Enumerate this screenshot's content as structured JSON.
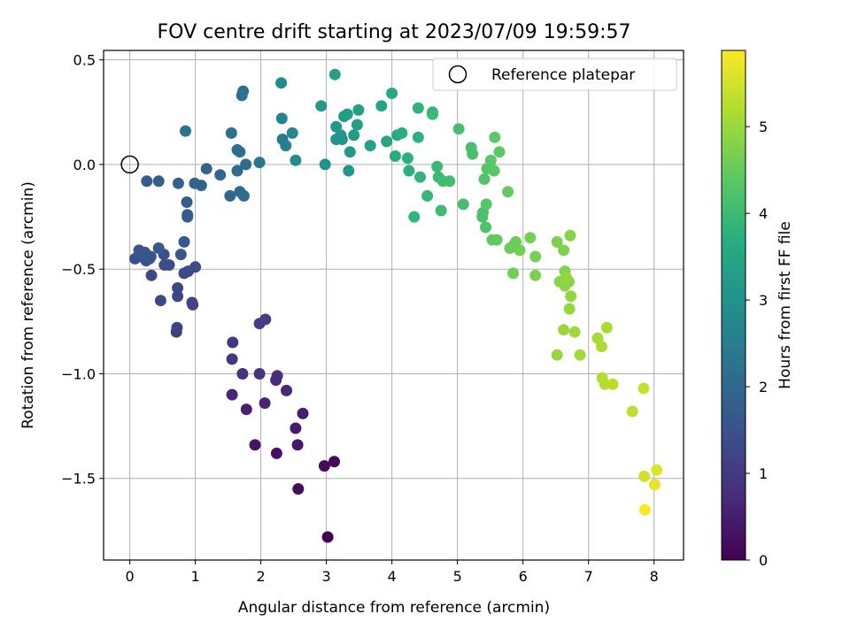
{
  "chart_data": {
    "type": "scatter",
    "title": "FOV centre drift starting at 2023/07/09 19:59:57",
    "xlabel": "Angular distance from reference (arcmin)",
    "ylabel": "Rotation from reference (arcmin)",
    "xlim": [
      -0.4,
      8.45
    ],
    "ylim": [
      -1.89,
      0.545
    ],
    "xticks": [
      0,
      1,
      2,
      3,
      4,
      5,
      6,
      7,
      8
    ],
    "xtick_labels": [
      "0",
      "1",
      "2",
      "3",
      "4",
      "5",
      "6",
      "7",
      "8"
    ],
    "yticks": [
      0.5,
      0.0,
      -0.5,
      -1.0,
      -1.5
    ],
    "ytick_labels": [
      "0.5",
      "0.0",
      "−0.5",
      "−1.0",
      "−1.5"
    ],
    "grid": true,
    "legend": {
      "location": "top-right",
      "entries": [
        "Reference platepar"
      ]
    },
    "reference_point": {
      "x": 0.0,
      "y": 0.0
    },
    "colorbar": {
      "label": "Hours from first FF file",
      "colormap": "viridis",
      "range": [
        0,
        5.88
      ],
      "ticks": [
        0,
        1,
        2,
        3,
        4,
        5
      ],
      "tick_labels": [
        "0",
        "1",
        "2",
        "3",
        "4",
        "5"
      ]
    },
    "series": [
      {
        "values": [
          [
            3.02,
            -1.78,
            0.0
          ],
          [
            3.12,
            -1.42,
            0.1
          ],
          [
            2.97,
            -1.44,
            0.15
          ],
          [
            2.57,
            -1.55,
            0.2
          ],
          [
            2.24,
            -1.38,
            0.3
          ],
          [
            1.91,
            -1.34,
            0.35
          ],
          [
            2.56,
            -1.34,
            0.4
          ],
          [
            2.53,
            -1.26,
            0.45
          ],
          [
            2.64,
            -1.19,
            0.5
          ],
          [
            1.78,
            -1.17,
            0.55
          ],
          [
            2.06,
            -1.14,
            0.6
          ],
          [
            1.56,
            -1.1,
            0.65
          ],
          [
            2.39,
            -1.08,
            0.7
          ],
          [
            2.23,
            -1.03,
            0.75
          ],
          [
            2.25,
            -1.01,
            0.8
          ],
          [
            1.72,
            -1.0,
            0.85
          ],
          [
            1.98,
            -1.0,
            0.9
          ],
          [
            1.56,
            -0.93,
            0.95
          ],
          [
            1.57,
            -0.85,
            1.0
          ],
          [
            1.98,
            -0.76,
            1.05
          ],
          [
            2.07,
            -0.74,
            1.1
          ],
          [
            0.71,
            -0.8,
            1.12
          ],
          [
            0.72,
            -0.78,
            1.15
          ],
          [
            0.96,
            -0.67,
            1.18
          ],
          [
            0.95,
            -0.66,
            1.2
          ],
          [
            0.73,
            -0.63,
            1.22
          ],
          [
            0.73,
            -0.59,
            1.25
          ],
          [
            0.47,
            -0.65,
            1.28
          ],
          [
            0.33,
            -0.53,
            1.3
          ],
          [
            0.83,
            -0.52,
            1.32
          ],
          [
            0.89,
            -0.51,
            1.35
          ],
          [
            1.0,
            -0.49,
            1.38
          ],
          [
            0.53,
            -0.48,
            1.4
          ],
          [
            0.6,
            -0.48,
            1.42
          ],
          [
            0.52,
            -0.43,
            1.45
          ],
          [
            0.08,
            -0.45,
            1.47
          ],
          [
            0.15,
            -0.44,
            1.48
          ],
          [
            0.25,
            -0.46,
            1.5
          ],
          [
            0.3,
            -0.45,
            1.52
          ],
          [
            0.32,
            -0.44,
            1.55
          ],
          [
            0.14,
            -0.41,
            1.57
          ],
          [
            0.23,
            -0.42,
            1.58
          ],
          [
            0.44,
            -0.4,
            1.6
          ],
          [
            0.78,
            -0.43,
            1.62
          ],
          [
            0.83,
            -0.37,
            1.65
          ],
          [
            0.88,
            -0.25,
            1.7
          ],
          [
            0.88,
            -0.24,
            1.72
          ],
          [
            0.87,
            -0.18,
            1.75
          ],
          [
            0.26,
            -0.08,
            1.78
          ],
          [
            0.44,
            -0.08,
            1.8
          ],
          [
            0.74,
            -0.09,
            1.82
          ],
          [
            0.99,
            -0.09,
            1.85
          ],
          [
            1.09,
            -0.1,
            1.87
          ],
          [
            1.17,
            -0.02,
            1.9
          ],
          [
            1.38,
            -0.05,
            1.95
          ],
          [
            1.53,
            -0.15,
            2.0
          ],
          [
            1.68,
            -0.13,
            2.05
          ],
          [
            1.74,
            -0.15,
            2.08
          ],
          [
            1.64,
            -0.03,
            2.1
          ],
          [
            1.77,
            0.0,
            2.12
          ],
          [
            1.64,
            0.07,
            2.15
          ],
          [
            1.68,
            0.06,
            2.18
          ],
          [
            1.55,
            0.15,
            2.2
          ],
          [
            1.71,
            0.33,
            2.22
          ],
          [
            1.73,
            0.35,
            2.24
          ],
          [
            0.85,
            0.16,
            2.26
          ],
          [
            1.98,
            0.01,
            2.3
          ],
          [
            2.33,
            0.12,
            2.45
          ],
          [
            2.38,
            0.09,
            2.55
          ],
          [
            2.32,
            0.22,
            2.65
          ],
          [
            2.48,
            0.15,
            2.7
          ],
          [
            2.53,
            0.02,
            2.8
          ],
          [
            2.31,
            0.39,
            2.85
          ],
          [
            2.98,
            0.0,
            3.0
          ],
          [
            3.15,
            0.12,
            3.05
          ],
          [
            3.24,
            0.12,
            3.08
          ],
          [
            3.22,
            0.14,
            3.1
          ],
          [
            3.34,
            -0.03,
            3.12
          ],
          [
            3.15,
            0.18,
            3.15
          ],
          [
            2.92,
            0.28,
            3.17
          ],
          [
            3.36,
            0.06,
            3.2
          ],
          [
            3.42,
            0.14,
            3.22
          ],
          [
            3.27,
            0.23,
            3.25
          ],
          [
            3.32,
            0.24,
            3.27
          ],
          [
            3.47,
            0.19,
            3.3
          ],
          [
            3.49,
            0.26,
            3.32
          ],
          [
            3.13,
            0.43,
            3.35
          ],
          [
            3.67,
            0.09,
            3.4
          ],
          [
            3.84,
            0.28,
            3.45
          ],
          [
            3.92,
            0.11,
            3.5
          ],
          [
            4.0,
            0.34,
            3.55
          ],
          [
            4.08,
            0.14,
            3.6
          ],
          [
            4.05,
            0.04,
            3.65
          ],
          [
            4.15,
            0.15,
            3.7
          ],
          [
            4.24,
            0.03,
            3.72
          ],
          [
            4.26,
            -0.03,
            3.75
          ],
          [
            4.4,
            0.13,
            3.78
          ],
          [
            4.4,
            0.27,
            3.82
          ],
          [
            4.43,
            -0.06,
            3.85
          ],
          [
            4.34,
            -0.25,
            3.88
          ],
          [
            4.54,
            -0.15,
            3.9
          ],
          [
            4.62,
            0.25,
            3.93
          ],
          [
            4.62,
            0.24,
            3.95
          ],
          [
            4.69,
            -0.01,
            3.97
          ],
          [
            4.71,
            -0.06,
            4.0
          ],
          [
            4.75,
            -0.22,
            4.02
          ],
          [
            4.78,
            -0.08,
            4.05
          ],
          [
            4.88,
            -0.08,
            4.08
          ],
          [
            5.02,
            0.17,
            4.1
          ],
          [
            5.09,
            -0.19,
            4.12
          ],
          [
            5.21,
            0.08,
            4.15
          ],
          [
            5.23,
            0.05,
            4.18
          ],
          [
            5.39,
            -0.23,
            4.2
          ],
          [
            5.38,
            -0.25,
            4.22
          ],
          [
            5.43,
            -0.3,
            4.25
          ],
          [
            5.41,
            -0.07,
            4.27
          ],
          [
            5.45,
            -0.02,
            4.3
          ],
          [
            5.44,
            -0.19,
            4.32
          ],
          [
            5.56,
            -0.03,
            4.35
          ],
          [
            5.51,
            0.02,
            4.38
          ],
          [
            5.57,
            0.13,
            4.4
          ],
          [
            5.64,
            0.06,
            4.42
          ],
          [
            5.6,
            -0.36,
            4.45
          ],
          [
            5.53,
            -0.36,
            4.47
          ],
          [
            5.77,
            -0.13,
            4.5
          ],
          [
            5.8,
            -0.4,
            4.52
          ],
          [
            5.87,
            -0.38,
            4.55
          ],
          [
            5.89,
            -0.37,
            4.57
          ],
          [
            5.85,
            -0.52,
            4.6
          ],
          [
            5.95,
            -0.41,
            4.62
          ],
          [
            6.11,
            -0.35,
            4.65
          ],
          [
            6.19,
            -0.44,
            4.68
          ],
          [
            6.19,
            -0.53,
            4.7
          ],
          [
            6.52,
            -0.37,
            4.73
          ],
          [
            6.62,
            -0.41,
            4.75
          ],
          [
            6.64,
            -0.51,
            4.78
          ],
          [
            6.72,
            -0.34,
            4.8
          ],
          [
            6.7,
            -0.56,
            4.82
          ],
          [
            6.56,
            -0.56,
            4.85
          ],
          [
            6.64,
            -0.58,
            4.87
          ],
          [
            6.66,
            -0.54,
            4.9
          ],
          [
            6.73,
            -0.63,
            4.92
          ],
          [
            6.71,
            -0.69,
            4.95
          ],
          [
            6.52,
            -0.91,
            4.97
          ],
          [
            6.62,
            -0.79,
            5.0
          ],
          [
            6.79,
            -0.8,
            5.03
          ],
          [
            6.87,
            -0.91,
            5.06
          ],
          [
            7.14,
            -0.83,
            5.1
          ],
          [
            7.28,
            -0.78,
            5.13
          ],
          [
            7.2,
            -0.87,
            5.16
          ],
          [
            7.21,
            -1.02,
            5.2
          ],
          [
            7.25,
            -1.05,
            5.23
          ],
          [
            7.37,
            -1.05,
            5.27
          ],
          [
            7.67,
            -1.18,
            5.33
          ],
          [
            7.84,
            -1.07,
            5.4
          ],
          [
            7.85,
            -1.49,
            5.5
          ],
          [
            8.04,
            -1.46,
            5.6
          ],
          [
            8.01,
            -1.53,
            5.7
          ],
          [
            7.86,
            -1.65,
            5.85
          ]
        ]
      }
    ]
  }
}
